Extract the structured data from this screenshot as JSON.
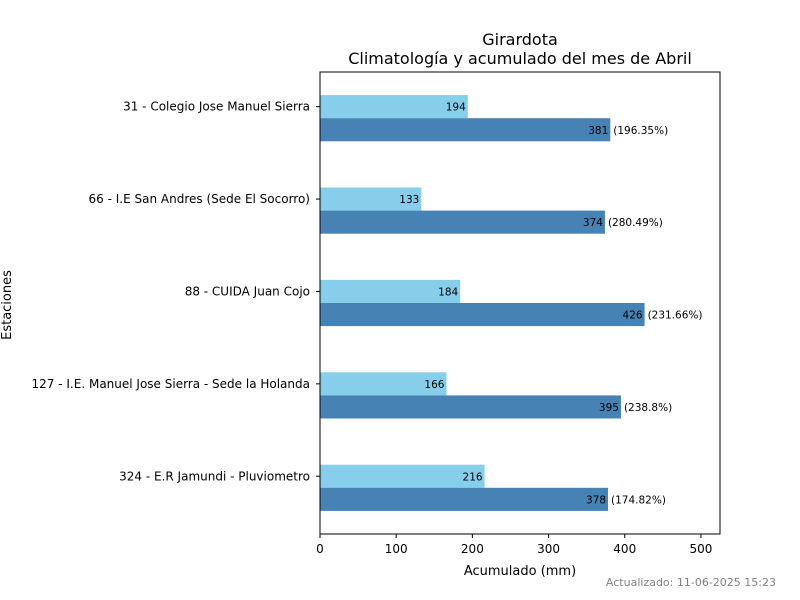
{
  "footer": "Actualizado: 11-06-2025 15:23",
  "chart_data": {
    "type": "bar",
    "orientation": "horizontal",
    "title": "Girardota",
    "subtitle": "Climatología y acumulado del mes de Abril",
    "xlabel": "Acumulado (mm)",
    "ylabel": "Estaciones",
    "xlim": [
      0,
      525
    ],
    "xticks": [
      0,
      100,
      200,
      300,
      400,
      500
    ],
    "grid": false,
    "categories": [
      "31 - Colegio Jose Manuel Sierra",
      "66 - I.E San Andres (Sede El Socorro)",
      "88 - CUIDA Juan Cojo",
      "127 - I.E. Manuel Jose Sierra - Sede la Holanda",
      "324 - E.R Jamundi - Pluviometro"
    ],
    "series": [
      {
        "color": "#87CEEB",
        "values": [
          194,
          133,
          184,
          166,
          216
        ],
        "labels": [
          "194",
          "133",
          "184",
          "166",
          "216"
        ],
        "annotations": [
          "",
          "",
          "",
          "",
          ""
        ]
      },
      {
        "color": "#4682B4",
        "values": [
          381,
          374,
          426,
          395,
          378
        ],
        "labels": [
          "381",
          "374",
          "426",
          "395",
          "378"
        ],
        "annotations": [
          "(196.35%)",
          "(280.49%)",
          "(231.66%)",
          "(238.8%)",
          "(174.82%)"
        ]
      }
    ]
  }
}
